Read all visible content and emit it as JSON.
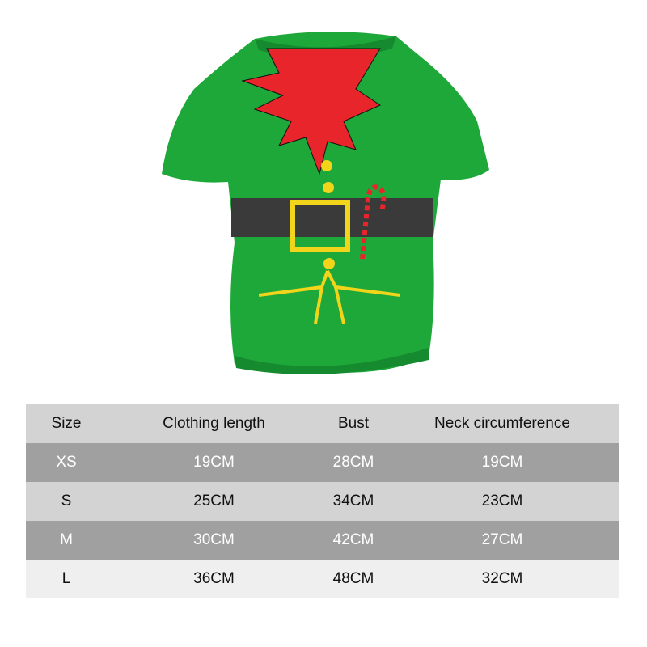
{
  "product": {
    "image": "green elf costume pet shirt with red collar, black belt, yellow buttons and candy cane",
    "colors": {
      "green": "#1fa83a",
      "red": "#e8252b",
      "belt": "#3a3a3a",
      "yellow": "#f2d41a"
    }
  },
  "size_table": {
    "headers": [
      "Size",
      "Clothing length",
      "Bust",
      "Neck circumference"
    ],
    "rows": [
      [
        "XS",
        "19CM",
        "28CM",
        "19CM"
      ],
      [
        "S",
        "25CM",
        "34CM",
        "23CM"
      ],
      [
        "M",
        "30CM",
        "42CM",
        "27CM"
      ],
      [
        "L",
        "36CM",
        "48CM",
        "32CM"
      ]
    ],
    "row_colors": [
      "#d3d3d3",
      "#a0a0a0",
      "#d3d3d3",
      "#a0a0a0",
      "#efefef"
    ]
  }
}
